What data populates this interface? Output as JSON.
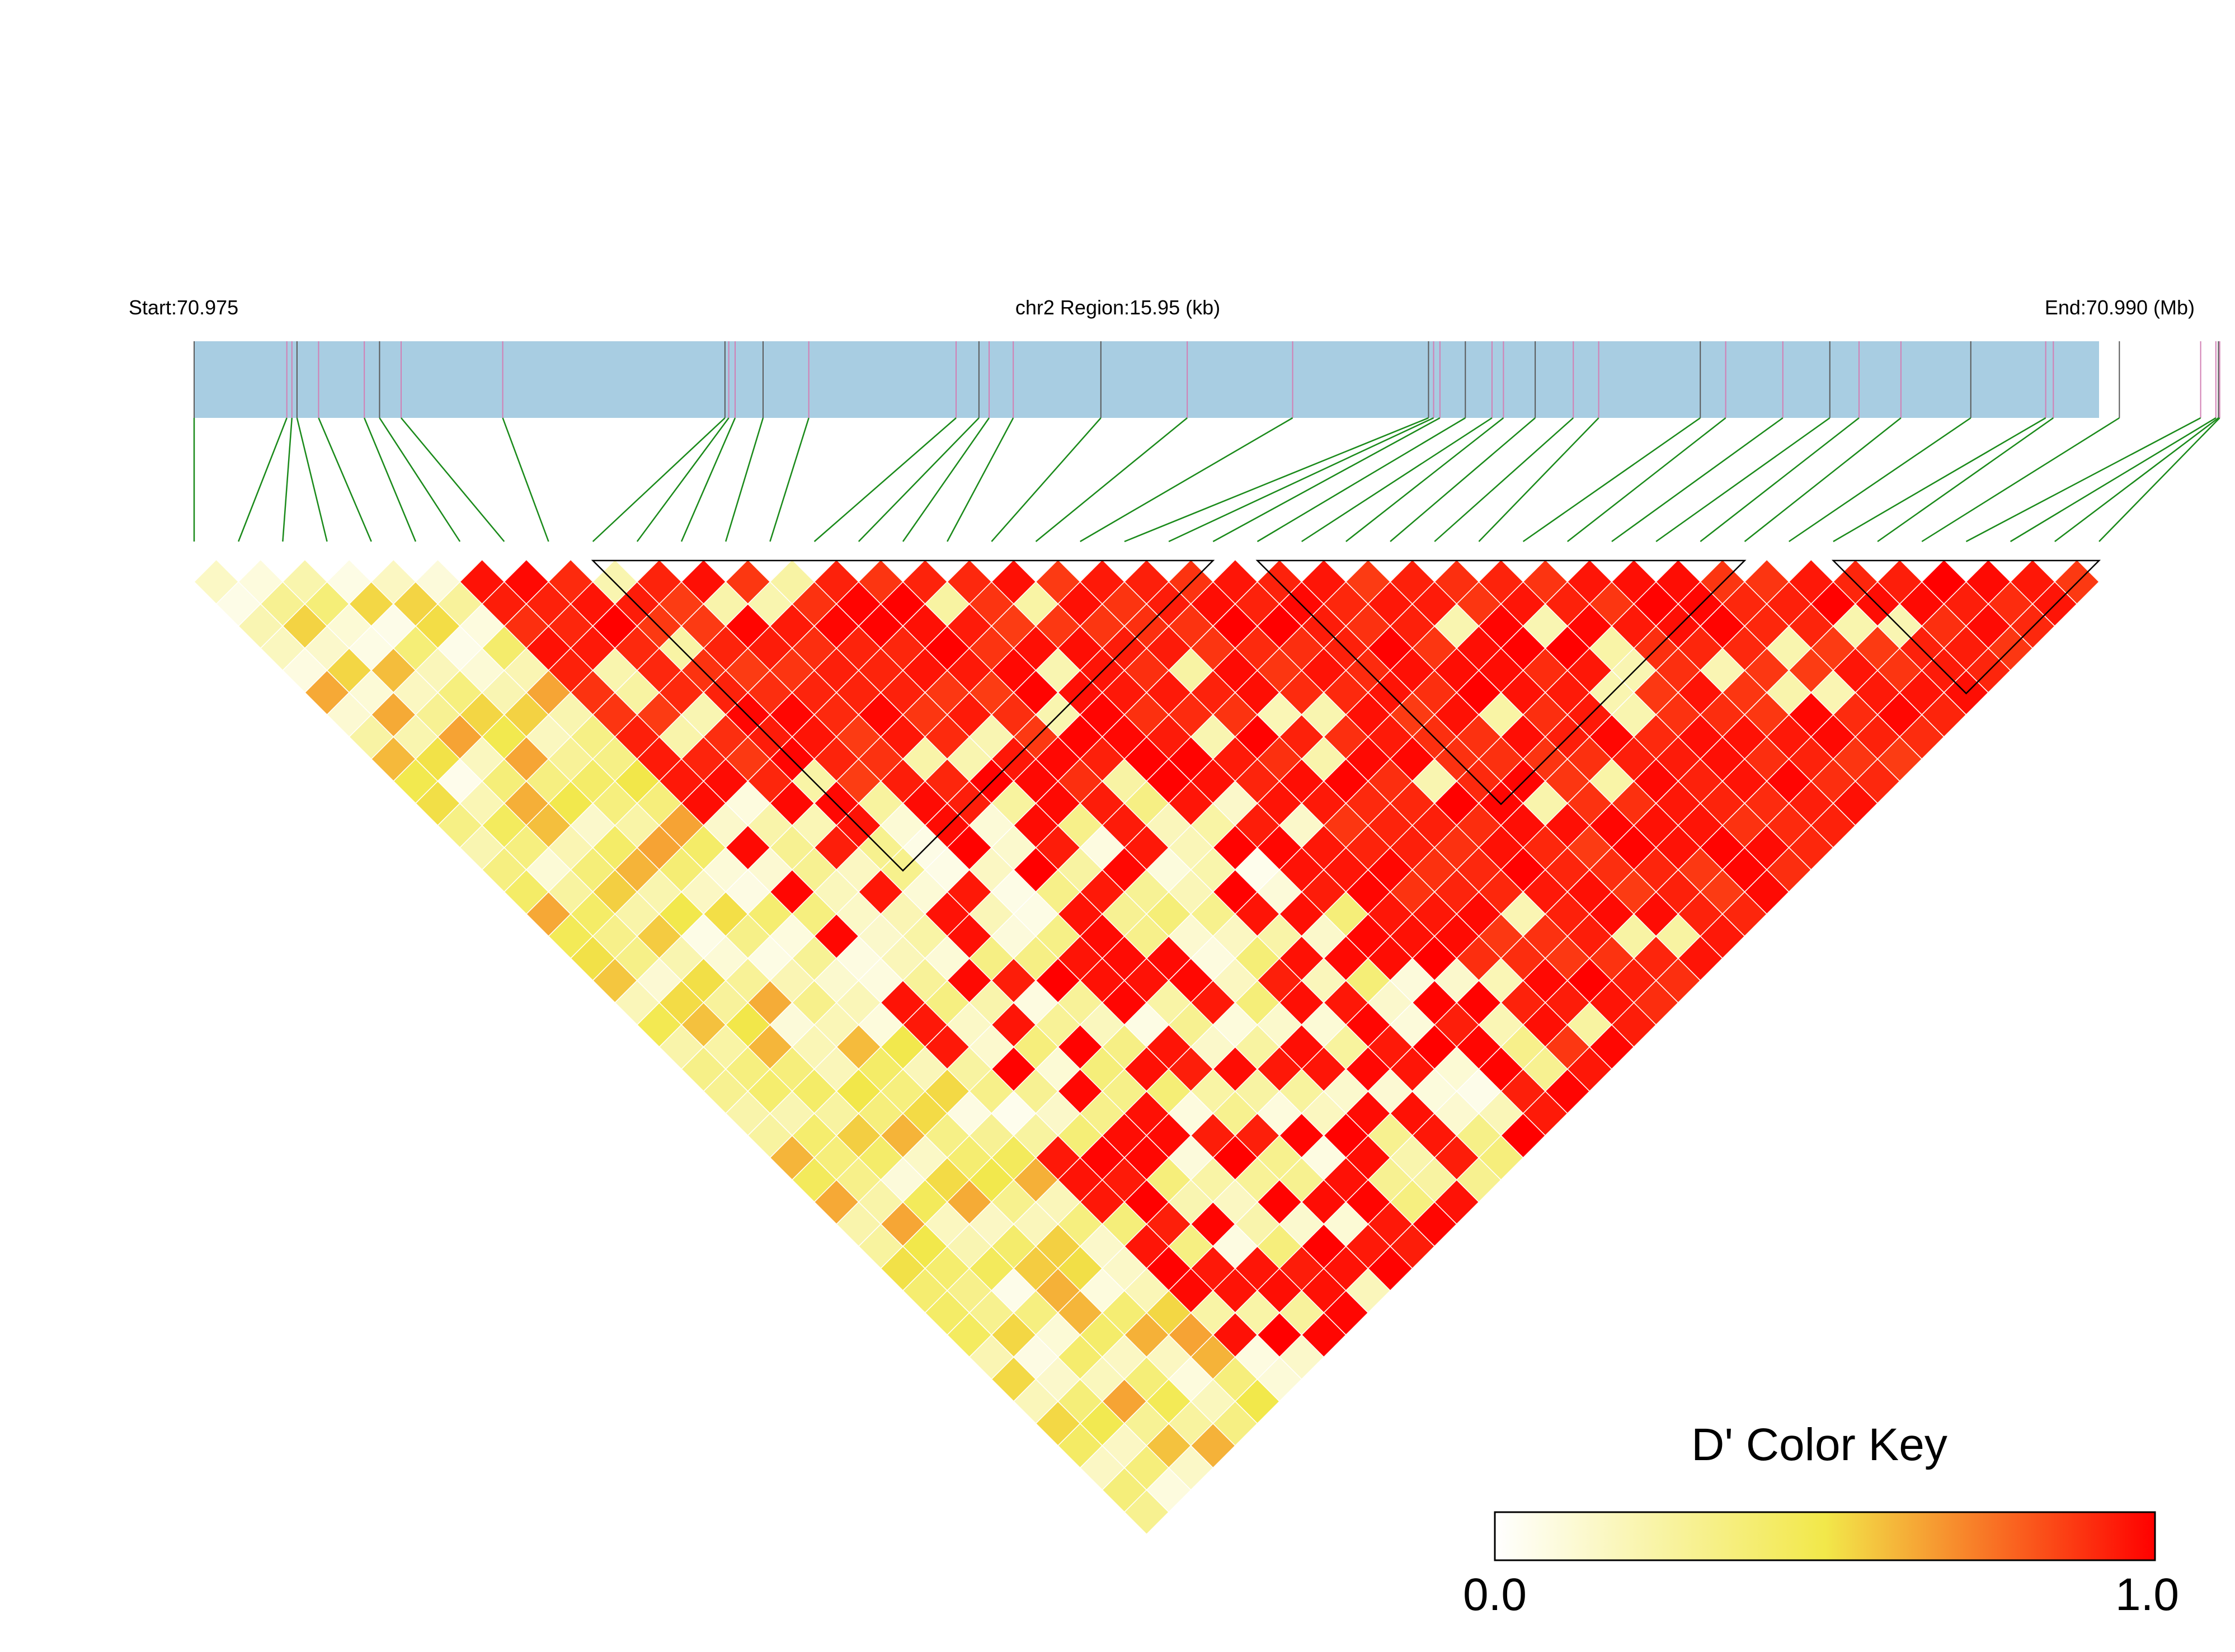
{
  "header": {
    "start_label": "Start:70.975",
    "region_label": "chr2 Region:15.95 (kb)",
    "end_label": "End:70.990 (Mb)"
  },
  "legend": {
    "title": "D' Color Key",
    "min_label": "0.0",
    "max_label": "1.0",
    "colors": [
      "#ffffff",
      "#f2e84a",
      "#ff0000"
    ]
  },
  "chart_data": {
    "type": "heatmap",
    "subtype": "LD triangle (linkage disequilibrium)",
    "metric": "D'",
    "scale": [
      0.0,
      1.0
    ],
    "region": {
      "chromosome": "chr2",
      "start_mb": 70.975,
      "end_mb": 70.99,
      "length_kb": 15.95
    },
    "num_snps": 44,
    "snp_positions_mb": [
      70.975,
      70.97573,
      70.97577,
      70.97581,
      70.97598,
      70.97634,
      70.97646,
      70.97663,
      70.97743,
      70.97918,
      70.97921,
      70.97926,
      70.97948,
      70.97984,
      70.981,
      70.98118,
      70.98126,
      70.98145,
      70.98214,
      70.98282,
      70.98365,
      70.98472,
      70.98476,
      70.98481,
      70.98501,
      70.98522,
      70.98531,
      70.98556,
      70.98586,
      70.98606,
      70.98686,
      70.98706,
      70.98751,
      70.98788,
      70.98811,
      70.98844,
      70.98899,
      70.98958,
      70.98964,
      70.99016,
      70.9908,
      70.99092,
      70.99094,
      70.99095
    ],
    "snp_colors": [
      "pink",
      "gray"
    ],
    "blocks": [
      [
        9,
        23
      ],
      [
        24,
        35
      ],
      [
        37,
        43
      ]
    ],
    "block_count": 3,
    "dominant_value": 1.0
  }
}
